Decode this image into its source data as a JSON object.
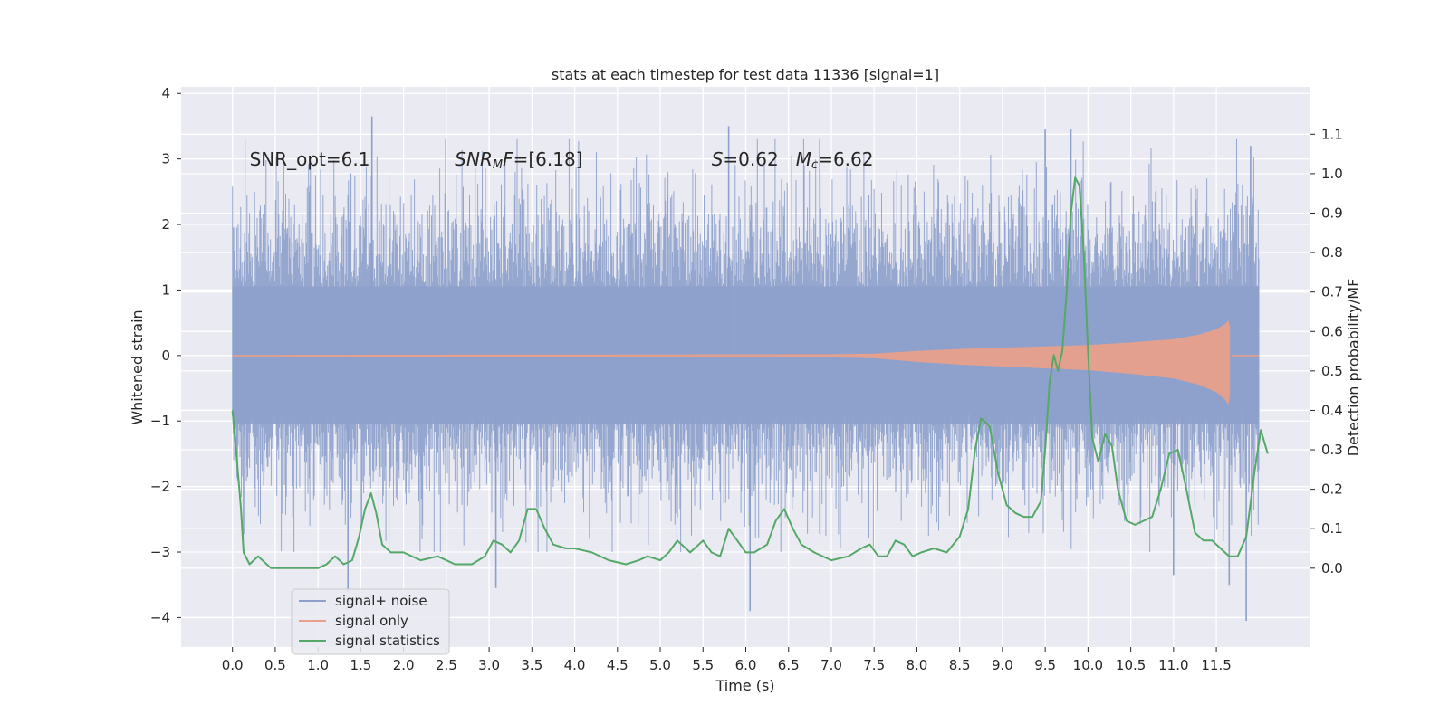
{
  "chart_data": {
    "type": "line",
    "title": "stats at each timestep for test data 11336 [signal=1]",
    "xlabel": "Time (s)",
    "ylabel": "Whitened strain",
    "y2label": "Detection probability/MF",
    "xlim": [
      -0.6,
      12.6
    ],
    "ylim": [
      -4.45,
      4.1
    ],
    "y2lim": [
      -0.2,
      1.22
    ],
    "xticks": [
      0.0,
      0.5,
      1.0,
      1.5,
      2.0,
      2.5,
      3.0,
      3.5,
      4.0,
      4.5,
      5.0,
      5.5,
      6.0,
      6.5,
      7.0,
      7.5,
      8.0,
      8.5,
      9.0,
      9.5,
      10.0,
      10.5,
      11.0,
      11.5
    ],
    "xtick_labels": [
      "0.0",
      "0.5",
      "1.0",
      "1.5",
      "2.0",
      "2.5",
      "3.0",
      "3.5",
      "4.0",
      "4.5",
      "5.0",
      "5.5",
      "6.0",
      "6.5",
      "7.0",
      "7.5",
      "8.0",
      "8.5",
      "9.0",
      "9.5",
      "10.0",
      "10.5",
      "11.0",
      "11.5"
    ],
    "yticks": [
      -4,
      -3,
      -2,
      -1,
      0,
      1,
      2,
      3,
      4
    ],
    "ytick_labels": [
      "−4",
      "−3",
      "−2",
      "−1",
      "0",
      "1",
      "2",
      "3",
      "4"
    ],
    "y2ticks": [
      0.0,
      0.1,
      0.2,
      0.3,
      0.4,
      0.5,
      0.6,
      0.7,
      0.8,
      0.9,
      1.0,
      1.1
    ],
    "y2tick_labels": [
      "0.0",
      "0.1",
      "0.2",
      "0.3",
      "0.4",
      "0.5",
      "0.6",
      "0.7",
      "0.8",
      "0.9",
      "1.0",
      "1.1"
    ],
    "grid": true,
    "legend_position": "bottom-left",
    "annotations": [
      {
        "parts": [
          {
            "text": "SNR_opt=6.1"
          }
        ],
        "x": 0.2,
        "y": 2.9
      },
      {
        "parts": [
          {
            "text": "SNR",
            "italic": true
          },
          {
            "text": "M",
            "italic": true,
            "sub": true
          },
          {
            "text": "F",
            "italic": true
          },
          {
            "text": "=[6.18]"
          }
        ],
        "x": 2.6,
        "y": 2.9
      },
      {
        "parts": [
          {
            "text": "S",
            "italic": true
          },
          {
            "text": "=0.62   "
          },
          {
            "text": "M",
            "italic": true
          },
          {
            "text": "c",
            "italic": true,
            "sub": true
          },
          {
            "text": "=6.62"
          }
        ],
        "x": 5.6,
        "y": 2.9
      }
    ],
    "series": [
      {
        "name": "signal+ noise",
        "color": "#8da0cb",
        "axis": "left",
        "x_range": [
          0.0,
          12.0
        ],
        "typical_envelope": [
          -1.6,
          2.2
        ],
        "notable_peaks": [
          {
            "x": 1.63,
            "y": 3.65
          },
          {
            "x": 5.8,
            "y": 3.5
          },
          {
            "x": 9.5,
            "y": 3.45
          },
          {
            "x": 9.8,
            "y": 3.45
          },
          {
            "x": 11.9,
            "y": 3.2
          }
        ],
        "notable_troughs": [
          {
            "x": 1.35,
            "y": -3.6
          },
          {
            "x": 3.08,
            "y": -3.55
          },
          {
            "x": 6.05,
            "y": -3.9
          },
          {
            "x": 11.0,
            "y": -3.35
          },
          {
            "x": 11.65,
            "y": -3.5
          },
          {
            "x": 11.85,
            "y": -4.05
          }
        ]
      },
      {
        "name": "signal only",
        "color": "#e8a08a",
        "axis": "left",
        "x_range": [
          0.0,
          12.0
        ],
        "amplitude_envelope": [
          [
            0.0,
            0.01
          ],
          [
            7.0,
            0.02
          ],
          [
            7.5,
            0.03
          ],
          [
            8.0,
            0.07
          ],
          [
            8.5,
            0.1
          ],
          [
            9.0,
            0.12
          ],
          [
            9.5,
            0.14
          ],
          [
            10.0,
            0.16
          ],
          [
            10.5,
            0.2
          ],
          [
            11.0,
            0.25
          ],
          [
            11.3,
            0.32
          ],
          [
            11.5,
            0.4
          ],
          [
            11.6,
            0.48
          ],
          [
            11.65,
            0.55
          ],
          [
            11.7,
            0.0
          ],
          [
            12.0,
            0.0
          ]
        ]
      },
      {
        "name": "signal statistics",
        "color": "#55a868",
        "axis": "right",
        "points": [
          [
            0.0,
            0.4
          ],
          [
            0.05,
            0.28
          ],
          [
            0.1,
            0.15
          ],
          [
            0.13,
            0.04
          ],
          [
            0.2,
            0.01
          ],
          [
            0.3,
            0.03
          ],
          [
            0.45,
            0.0
          ],
          [
            0.6,
            0.0
          ],
          [
            0.8,
            0.0
          ],
          [
            1.0,
            0.0
          ],
          [
            1.1,
            0.01
          ],
          [
            1.2,
            0.03
          ],
          [
            1.3,
            0.01
          ],
          [
            1.4,
            0.02
          ],
          [
            1.48,
            0.08
          ],
          [
            1.55,
            0.15
          ],
          [
            1.62,
            0.19
          ],
          [
            1.68,
            0.14
          ],
          [
            1.75,
            0.06
          ],
          [
            1.85,
            0.04
          ],
          [
            2.0,
            0.04
          ],
          [
            2.2,
            0.02
          ],
          [
            2.4,
            0.03
          ],
          [
            2.6,
            0.01
          ],
          [
            2.8,
            0.01
          ],
          [
            2.95,
            0.03
          ],
          [
            3.05,
            0.07
          ],
          [
            3.15,
            0.06
          ],
          [
            3.25,
            0.04
          ],
          [
            3.35,
            0.07
          ],
          [
            3.45,
            0.15
          ],
          [
            3.55,
            0.15
          ],
          [
            3.65,
            0.1
          ],
          [
            3.75,
            0.06
          ],
          [
            3.9,
            0.05
          ],
          [
            4.0,
            0.05
          ],
          [
            4.2,
            0.04
          ],
          [
            4.4,
            0.02
          ],
          [
            4.6,
            0.01
          ],
          [
            4.75,
            0.02
          ],
          [
            4.85,
            0.03
          ],
          [
            5.0,
            0.02
          ],
          [
            5.1,
            0.04
          ],
          [
            5.2,
            0.07
          ],
          [
            5.35,
            0.04
          ],
          [
            5.5,
            0.07
          ],
          [
            5.6,
            0.04
          ],
          [
            5.7,
            0.03
          ],
          [
            5.8,
            0.1
          ],
          [
            5.9,
            0.07
          ],
          [
            6.0,
            0.04
          ],
          [
            6.1,
            0.04
          ],
          [
            6.25,
            0.06
          ],
          [
            6.35,
            0.12
          ],
          [
            6.45,
            0.15
          ],
          [
            6.55,
            0.1
          ],
          [
            6.65,
            0.06
          ],
          [
            6.8,
            0.04
          ],
          [
            7.0,
            0.02
          ],
          [
            7.2,
            0.03
          ],
          [
            7.35,
            0.05
          ],
          [
            7.45,
            0.06
          ],
          [
            7.55,
            0.03
          ],
          [
            7.65,
            0.03
          ],
          [
            7.75,
            0.07
          ],
          [
            7.85,
            0.06
          ],
          [
            7.95,
            0.03
          ],
          [
            8.05,
            0.04
          ],
          [
            8.2,
            0.05
          ],
          [
            8.35,
            0.04
          ],
          [
            8.5,
            0.08
          ],
          [
            8.6,
            0.15
          ],
          [
            8.68,
            0.3
          ],
          [
            8.75,
            0.38
          ],
          [
            8.85,
            0.36
          ],
          [
            8.95,
            0.24
          ],
          [
            9.05,
            0.16
          ],
          [
            9.15,
            0.14
          ],
          [
            9.25,
            0.13
          ],
          [
            9.35,
            0.13
          ],
          [
            9.45,
            0.17
          ],
          [
            9.5,
            0.3
          ],
          [
            9.55,
            0.47
          ],
          [
            9.6,
            0.54
          ],
          [
            9.65,
            0.5
          ],
          [
            9.7,
            0.55
          ],
          [
            9.75,
            0.7
          ],
          [
            9.8,
            0.9
          ],
          [
            9.85,
            0.99
          ],
          [
            9.9,
            0.97
          ],
          [
            9.95,
            0.8
          ],
          [
            10.0,
            0.55
          ],
          [
            10.05,
            0.33
          ],
          [
            10.12,
            0.27
          ],
          [
            10.2,
            0.34
          ],
          [
            10.28,
            0.31
          ],
          [
            10.35,
            0.2
          ],
          [
            10.45,
            0.12
          ],
          [
            10.55,
            0.11
          ],
          [
            10.65,
            0.12
          ],
          [
            10.75,
            0.13
          ],
          [
            10.85,
            0.2
          ],
          [
            10.95,
            0.29
          ],
          [
            11.05,
            0.3
          ],
          [
            11.15,
            0.2
          ],
          [
            11.25,
            0.09
          ],
          [
            11.35,
            0.07
          ],
          [
            11.45,
            0.07
          ],
          [
            11.55,
            0.05
          ],
          [
            11.65,
            0.03
          ],
          [
            11.75,
            0.03
          ],
          [
            11.85,
            0.08
          ],
          [
            11.95,
            0.25
          ],
          [
            12.02,
            0.35
          ],
          [
            12.1,
            0.29
          ]
        ]
      }
    ]
  }
}
